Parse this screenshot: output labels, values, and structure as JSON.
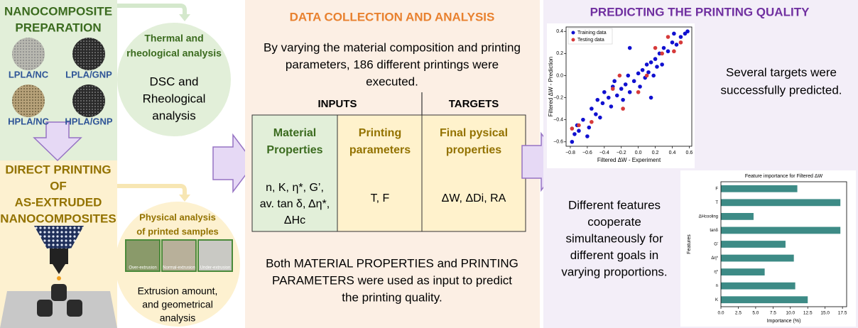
{
  "preparation": {
    "title_lines": [
      "NANOCOMPOSITE",
      "PREPARATION"
    ],
    "samples": [
      "LPLA/NC",
      "LPLA/GNP",
      "HPLA/NC",
      "HPLA/GNP"
    ]
  },
  "printing": {
    "title_lines": [
      "DIRECT PRINTING",
      "OF",
      "AS-EXTRUDED",
      "NANOCOMPOSITES"
    ]
  },
  "thermal": {
    "title_lines": [
      "Thermal and",
      "rheological analysis"
    ],
    "text_lines": [
      "DSC and",
      "Rheological",
      "analysis"
    ]
  },
  "physical": {
    "title_lines": [
      "Physical analysis",
      "of printed samples"
    ],
    "samples": [
      "Over-extrusion",
      "Normal-extrusion",
      "Under-extrusion"
    ],
    "text_lines": [
      "Extrusion amount,",
      "and geometrical",
      "analysis"
    ]
  },
  "data_collection": {
    "title": "DATA COLLECTION AND ANALYSIS",
    "intro_lines": [
      "By varying the material composition and printing",
      "parameters, 186 different printings were",
      "executed."
    ],
    "table": {
      "headers": [
        "INPUTS",
        "TARGETS"
      ],
      "columns": [
        {
          "title_lines": [
            "Material",
            "Properties"
          ],
          "content_lines": [
            "n,  K, η*, G’,",
            "av. tan δ, Δη*,",
            "ΔHc"
          ]
        },
        {
          "title_lines": [
            "Printing",
            "parameters"
          ],
          "content_lines": [
            "T, F"
          ]
        },
        {
          "title_lines": [
            "Final pysical",
            "properties"
          ],
          "content_lines": [
            "ΔW, ΔDi, RA"
          ]
        }
      ]
    },
    "conclusion_lines": [
      "Both MATERIAL PROPERTIES and PRINTING",
      "PARAMETERS were used as input to predict",
      "the printing quality."
    ]
  },
  "prediction": {
    "title": "PREDICTING THE PRINTING QUALITY",
    "scatter_note_lines": [
      "Several targets were",
      "successfully predicted."
    ],
    "bar_note_lines": [
      "Different features",
      "cooperate",
      "simultaneously for",
      "different goals in",
      "varying proportions."
    ]
  },
  "chart_data": [
    {
      "type": "scatter",
      "x_label": "Filtered ΔW - Experiment",
      "y_label": "Filtered ΔW - Prediction",
      "xlim": [
        -0.85,
        0.63
      ],
      "ylim": [
        -0.64,
        0.44
      ],
      "xticks": [
        {
          "value": -0.8,
          "label": "−0.8"
        },
        {
          "value": -0.6,
          "label": "−0.6"
        },
        {
          "value": -0.4,
          "label": "−0.4"
        },
        {
          "value": -0.2,
          "label": "−0.2"
        },
        {
          "value": 0,
          "label": "0.0"
        },
        0.2,
        0.4,
        0.6
      ],
      "yticks": [
        {
          "value": -0.6,
          "label": "−0.6"
        },
        {
          "value": -0.4,
          "label": "−0.4"
        },
        {
          "value": -0.2,
          "label": "−0.2"
        },
        {
          "value": 0,
          "label": "0.0"
        },
        0.2,
        0.4
      ],
      "legend": "upper-left",
      "series": [
        {
          "name": "Training data",
          "color": "#1010d0",
          "x": [
            -0.78,
            -0.75,
            -0.72,
            -0.7,
            -0.65,
            -0.6,
            -0.58,
            -0.55,
            -0.5,
            -0.48,
            -0.45,
            -0.42,
            -0.4,
            -0.35,
            -0.32,
            -0.3,
            -0.28,
            -0.25,
            -0.2,
            -0.18,
            -0.15,
            -0.12,
            -0.1,
            -0.05,
            0.0,
            0.02,
            0.05,
            0.08,
            0.1,
            0.12,
            0.15,
            0.18,
            0.2,
            0.22,
            0.25,
            0.28,
            0.3,
            0.35,
            0.4,
            0.45,
            0.5,
            0.55,
            0.58,
            0.42,
            -0.1,
            0.15
          ],
          "values": [
            -0.6,
            -0.53,
            -0.45,
            -0.5,
            -0.4,
            -0.55,
            -0.47,
            -0.3,
            -0.35,
            -0.22,
            -0.38,
            -0.25,
            -0.15,
            -0.2,
            -0.28,
            -0.1,
            -0.05,
            -0.18,
            -0.12,
            -0.22,
            -0.08,
            0.0,
            -0.15,
            -0.05,
            0.02,
            -0.1,
            0.05,
            -0.02,
            0.1,
            0.03,
            0.12,
            0.0,
            0.15,
            0.08,
            0.2,
            0.1,
            0.25,
            0.22,
            0.3,
            0.28,
            0.35,
            0.38,
            0.4,
            0.38,
            0.25,
            -0.2
          ]
        },
        {
          "name": "Testing data",
          "color": "#d63a3a",
          "x": [
            -0.78,
            -0.7,
            -0.55,
            -0.3,
            -0.22,
            -0.18,
            0.0,
            0.1,
            0.2,
            0.28,
            0.35,
            0.42,
            0.5
          ],
          "values": [
            -0.48,
            -0.45,
            -0.42,
            -0.12,
            0.0,
            -0.3,
            -0.15,
            0.0,
            0.25,
            0.2,
            0.35,
            0.22,
            0.3
          ]
        }
      ]
    },
    {
      "type": "barh",
      "title": "Feature importance for Filtered ΔW",
      "x_label": "Importance (%)",
      "y_label": "Features",
      "categories": [
        "F",
        "T",
        "ΔHcooling",
        "tanδ",
        "G'",
        "Δη*",
        "η*",
        "n",
        "K"
      ],
      "values": [
        11,
        17.2,
        4.7,
        17.2,
        9.3,
        10.5,
        6.3,
        10.7,
        12.5
      ],
      "color": "#3d8b86",
      "xlim": [
        0,
        18.1
      ],
      "xticks": [
        {
          "value": 0,
          "label": "0.0"
        },
        2.5,
        {
          "value": 5,
          "label": "5.0"
        },
        7.5,
        {
          "value": 10,
          "label": "10.0"
        },
        12.5,
        {
          "value": 15,
          "label": "15.0"
        },
        17.5
      ]
    }
  ]
}
